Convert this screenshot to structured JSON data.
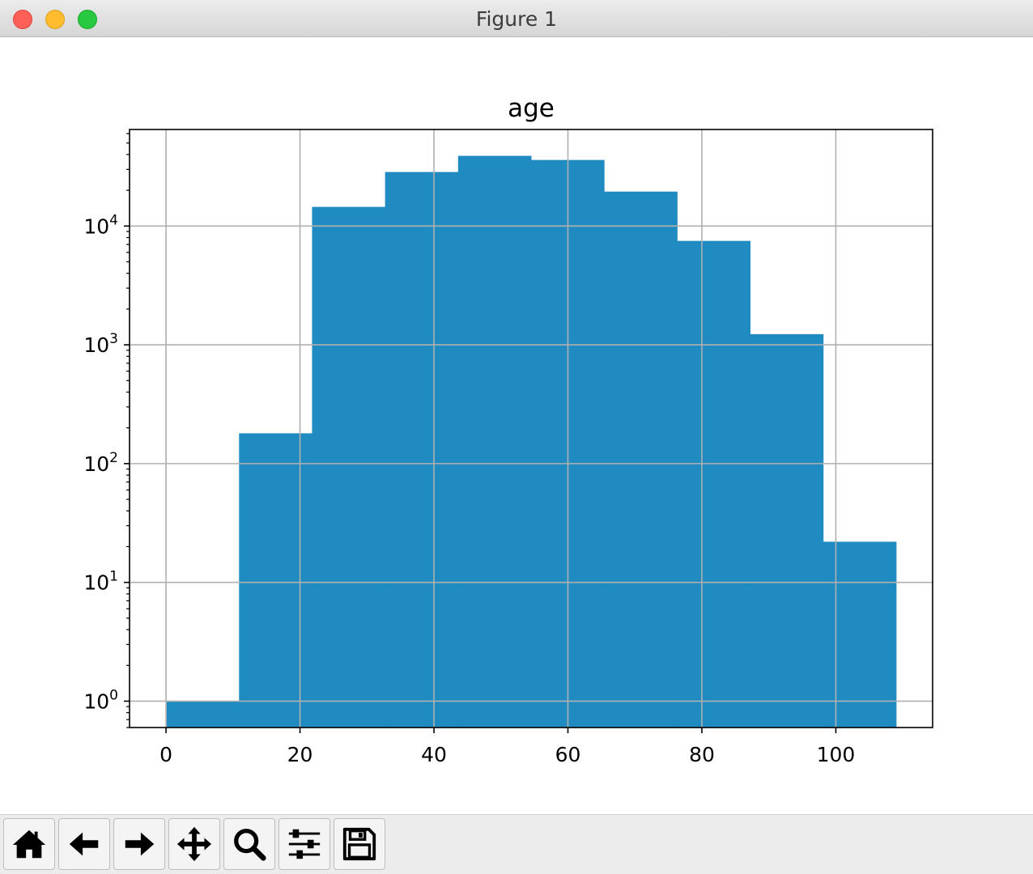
{
  "window": {
    "title": "Figure 1"
  },
  "toolbar": {
    "buttons": [
      {
        "name": "home-button",
        "icon": "home-icon"
      },
      {
        "name": "back-button",
        "icon": "arrow-left-icon"
      },
      {
        "name": "forward-button",
        "icon": "arrow-right-icon"
      },
      {
        "name": "pan-button",
        "icon": "move-icon"
      },
      {
        "name": "zoom-button",
        "icon": "magnifier-icon"
      },
      {
        "name": "configure-subplots-button",
        "icon": "sliders-icon"
      },
      {
        "name": "save-button",
        "icon": "floppy-disk-icon"
      }
    ]
  },
  "chart_data": {
    "type": "bar",
    "title": "age",
    "xlabel": "",
    "ylabel": "",
    "yscale": "log",
    "bar_color": "#1f8bc1",
    "grid": true,
    "xlim": [
      -5.45,
      114.45
    ],
    "ylim": [
      0.6,
      65000
    ],
    "bin_edges": [
      0,
      10.9,
      21.8,
      32.7,
      43.6,
      54.5,
      65.4,
      76.3,
      87.2,
      98.1,
      109
    ],
    "values": [
      1,
      180,
      14500,
      28500,
      39000,
      36000,
      19500,
      7500,
      1230,
      22
    ],
    "x_ticks": [
      {
        "value": 0,
        "label": "0"
      },
      {
        "value": 20,
        "label": "20"
      },
      {
        "value": 40,
        "label": "40"
      },
      {
        "value": 60,
        "label": "60"
      },
      {
        "value": 80,
        "label": "80"
      },
      {
        "value": 100,
        "label": "100"
      }
    ],
    "y_ticks": [
      {
        "value": 1,
        "base": "10",
        "exp": "0"
      },
      {
        "value": 10,
        "base": "10",
        "exp": "1"
      },
      {
        "value": 100,
        "base": "10",
        "exp": "2"
      },
      {
        "value": 1000,
        "base": "10",
        "exp": "3"
      },
      {
        "value": 10000,
        "base": "10",
        "exp": "4"
      }
    ]
  }
}
